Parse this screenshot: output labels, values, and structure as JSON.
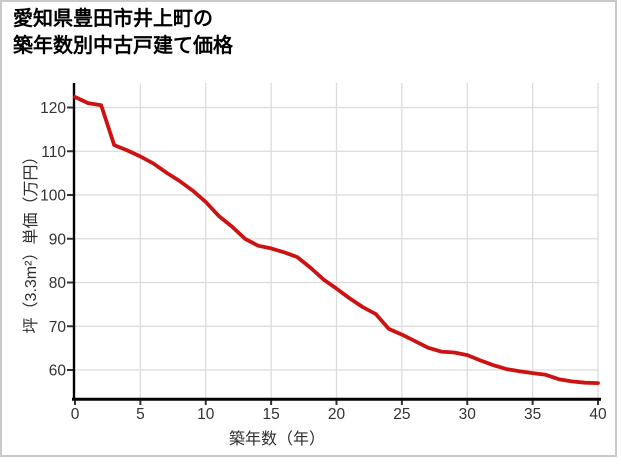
{
  "header": {
    "title_line1": "愛知県豊田市井上町の",
    "title_line2": "築年数別中古戸建て価格"
  },
  "chart_data": {
    "type": "line",
    "title": "愛知県豊田市井上町の築年数別中古戸建て価格",
    "xlabel": "築年数（年）",
    "ylabel": "坪（3.3m²）単価（万円）",
    "x": [
      0,
      1,
      2,
      3,
      4,
      5,
      6,
      7,
      8,
      9,
      10,
      11,
      12,
      13,
      14,
      15,
      16,
      17,
      18,
      19,
      20,
      21,
      22,
      23,
      24,
      25,
      26,
      27,
      28,
      29,
      30,
      31,
      32,
      33,
      34,
      35,
      36,
      37,
      38,
      39,
      40
    ],
    "values": [
      122.4,
      121.0,
      120.5,
      111.4,
      110.2,
      108.8,
      107.2,
      105.1,
      103.2,
      101.0,
      98.4,
      95.2,
      92.8,
      90.0,
      88.4,
      87.8,
      86.9,
      85.8,
      83.4,
      80.7,
      78.6,
      76.4,
      74.4,
      72.8,
      69.4,
      68.1,
      66.6,
      65.1,
      64.2,
      64.0,
      63.4,
      62.2,
      61.1,
      60.2,
      59.7,
      59.3,
      58.9,
      57.9,
      57.4,
      57.1,
      57.0
    ],
    "xticks": [
      0,
      5,
      10,
      15,
      20,
      25,
      30,
      35,
      40
    ],
    "yticks": [
      60,
      70,
      80,
      90,
      100,
      110,
      120
    ],
    "xlim": [
      0,
      40
    ],
    "ylim": [
      53.6,
      125.6
    ],
    "grid": true,
    "legend_position": "none",
    "line_color": "#cc1212"
  },
  "colors": {
    "line": "#cc1212",
    "grid": "#dcdcdc",
    "axis": "#000000",
    "tick_label": "#333333",
    "frame_border": "#c9c9c9",
    "background": "#ffffff",
    "title_text": "#000000"
  }
}
